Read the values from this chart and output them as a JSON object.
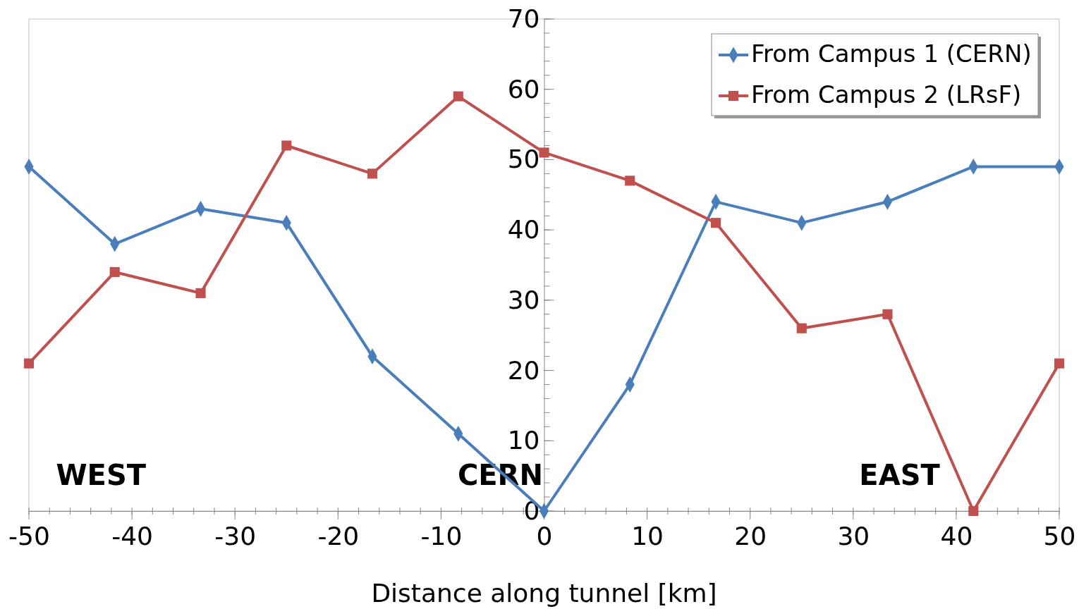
{
  "chart_data": {
    "type": "line",
    "xlabel": "Distance along tunnel [km]",
    "x": [
      -50,
      -41.67,
      -33.33,
      -25,
      -16.67,
      -8.33,
      0,
      8.33,
      16.67,
      25,
      33.33,
      41.67,
      50
    ],
    "series": [
      {
        "name": "From Campus 1 (CERN)",
        "color": "#4a7ebb",
        "marker": "diamond",
        "values": [
          49,
          38,
          43,
          41,
          22,
          11,
          0,
          18,
          44,
          41,
          44,
          49,
          49
        ]
      },
      {
        "name": "From Campus 2 (LRsF)",
        "color": "#c0504d",
        "marker": "square",
        "values": [
          21,
          34,
          31,
          52,
          48,
          59,
          51,
          47,
          41,
          26,
          28,
          0,
          21
        ]
      }
    ],
    "xlim": [
      -50,
      50
    ],
    "xticks": [
      -50,
      -40,
      -30,
      -20,
      -10,
      0,
      10,
      20,
      30,
      40,
      50
    ],
    "ylim": [
      0,
      70
    ],
    "yticks": [
      0,
      10,
      20,
      30,
      40,
      50,
      60,
      70
    ],
    "grid": false,
    "legend": "top right",
    "line_style": "solid",
    "annotations": [
      "WEST",
      "CERN",
      "EAST"
    ]
  }
}
